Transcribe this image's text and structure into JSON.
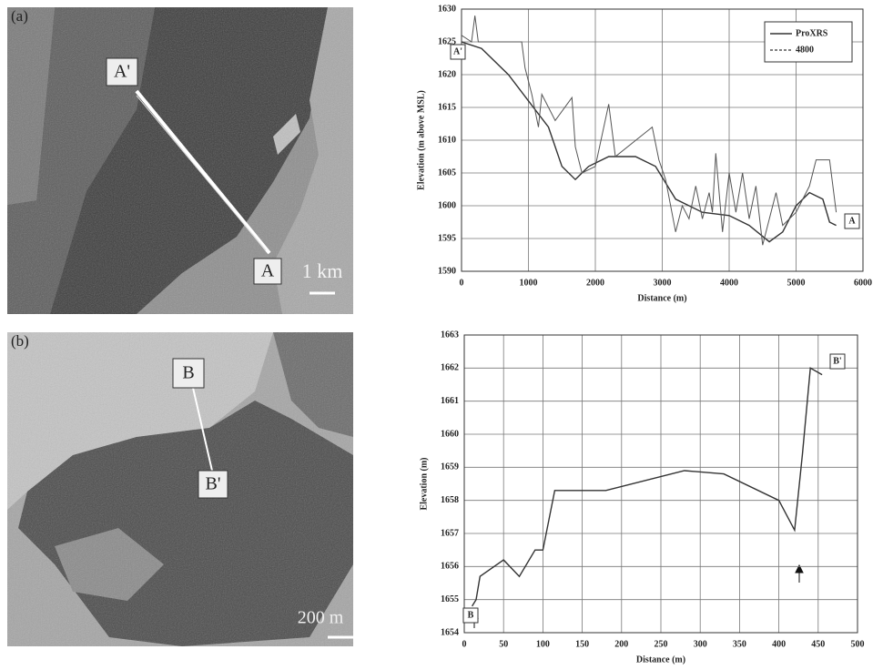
{
  "panels": [
    {
      "label": "(a)",
      "points": [
        "A'",
        "A"
      ],
      "scale": "1 km"
    },
    {
      "label": "(b)",
      "points": [
        "B",
        "B'"
      ],
      "scale": "200 m"
    }
  ],
  "chart_data": [
    {
      "type": "line",
      "xlabel": "Distance (m)",
      "ylabel": "Elevation (m above MSL)",
      "xlim": [
        0,
        6000
      ],
      "xticks": [
        0,
        1000,
        2000,
        3000,
        4000,
        5000,
        6000
      ],
      "ylim": [
        1590,
        1630
      ],
      "yticks": [
        1590,
        1595,
        1600,
        1605,
        1610,
        1615,
        1620,
        1625,
        1630
      ],
      "grid": true,
      "legend": "upper right",
      "annotations": [
        "A'",
        "A"
      ],
      "series": [
        {
          "name": "ProXRS",
          "color": "#333333",
          "x": [
            0,
            300,
            700,
            1000,
            1300,
            1500,
            1700,
            1900,
            2200,
            2600,
            2900,
            3200,
            3600,
            4000,
            4300,
            4600,
            4800,
            5000,
            5200,
            5400,
            5500,
            5600
          ],
          "values": [
            1625,
            1624,
            1620,
            1616,
            1612,
            1606,
            1604,
            1606,
            1607.5,
            1607.5,
            1606,
            1601,
            1599,
            1598.5,
            1597,
            1594.5,
            1596,
            1600,
            1602,
            1601,
            1597.5,
            1597
          ]
        },
        {
          "name": "4800",
          "color": "#555555",
          "x": [
            0,
            150,
            200,
            250,
            900,
            950,
            1050,
            1150,
            1200,
            1400,
            1650,
            1700,
            1800,
            2000,
            2200,
            2300,
            2850,
            2950,
            3050,
            3200,
            3300,
            3400,
            3500,
            3600,
            3700,
            3750,
            3800,
            3900,
            4000,
            4100,
            4200,
            4300,
            4400,
            4500,
            4700,
            4800,
            5000,
            5200,
            5300,
            5500,
            5600
          ],
          "values": [
            1626,
            1625,
            1629,
            1625,
            1625,
            1621,
            1617,
            1612,
            1617,
            1613,
            1616.5,
            1609,
            1605,
            1606,
            1615.5,
            1607.5,
            1612,
            1607,
            1604,
            1596,
            1600,
            1598,
            1603,
            1598,
            1602,
            1599,
            1608,
            1596,
            1605,
            1599,
            1605,
            1598,
            1603,
            1594,
            1602,
            1597,
            1599,
            1603,
            1607,
            1607,
            1599
          ]
        }
      ]
    },
    {
      "type": "line",
      "xlabel": "Distance (m)",
      "ylabel": "Elevation (m)",
      "xlim": [
        0,
        500
      ],
      "xticks": [
        0,
        50,
        100,
        150,
        200,
        250,
        300,
        350,
        400,
        450,
        500
      ],
      "ylim": [
        1654,
        1663
      ],
      "yticks": [
        1654,
        1655,
        1656,
        1657,
        1658,
        1659,
        1660,
        1661,
        1662,
        1663
      ],
      "grid": true,
      "annotations": [
        "B",
        "B'"
      ],
      "series": [
        {
          "color": "#333333",
          "x": [
            10,
            15,
            20,
            50,
            70,
            90,
            100,
            115,
            180,
            280,
            330,
            400,
            420,
            430,
            440,
            455
          ],
          "values": [
            1654.8,
            1655,
            1655.7,
            1656.2,
            1655.7,
            1656.5,
            1656.5,
            1658.3,
            1658.3,
            1658.9,
            1658.8,
            1658.0,
            1657.1,
            1659.4,
            1662.0,
            1661.8
          ]
        }
      ]
    }
  ]
}
